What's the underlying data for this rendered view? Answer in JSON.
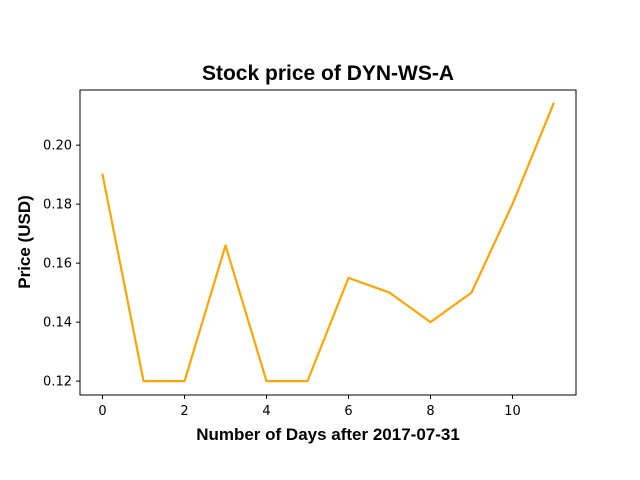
{
  "chart_data": {
    "type": "line",
    "title": "Stock price of DYN-WS-A",
    "xlabel": "Number of Days after 2017-07-31",
    "ylabel": "Price (USD)",
    "x": [
      0,
      1,
      2,
      3,
      4,
      5,
      6,
      7,
      8,
      9,
      10,
      11
    ],
    "series": [
      {
        "values": [
          0.19,
          0.12,
          0.12,
          0.166,
          0.12,
          0.12,
          0.155,
          0.15,
          0.14,
          0.15,
          0.18,
          0.214
        ],
        "color": "#ffa500"
      }
    ],
    "xlim": [
      -0.55,
      11.55
    ],
    "ylim": [
      0.1153,
      0.2187
    ],
    "xticks": [
      0,
      2,
      4,
      6,
      8,
      10
    ],
    "xtick_labels": [
      "0",
      "2",
      "4",
      "6",
      "8",
      "10"
    ],
    "yticks": [
      0.12,
      0.14,
      0.16,
      0.18,
      0.2
    ],
    "ytick_labels": [
      "0.12",
      "0.14",
      "0.16",
      "0.18",
      "0.20"
    ],
    "grid": false,
    "legend": "none"
  }
}
